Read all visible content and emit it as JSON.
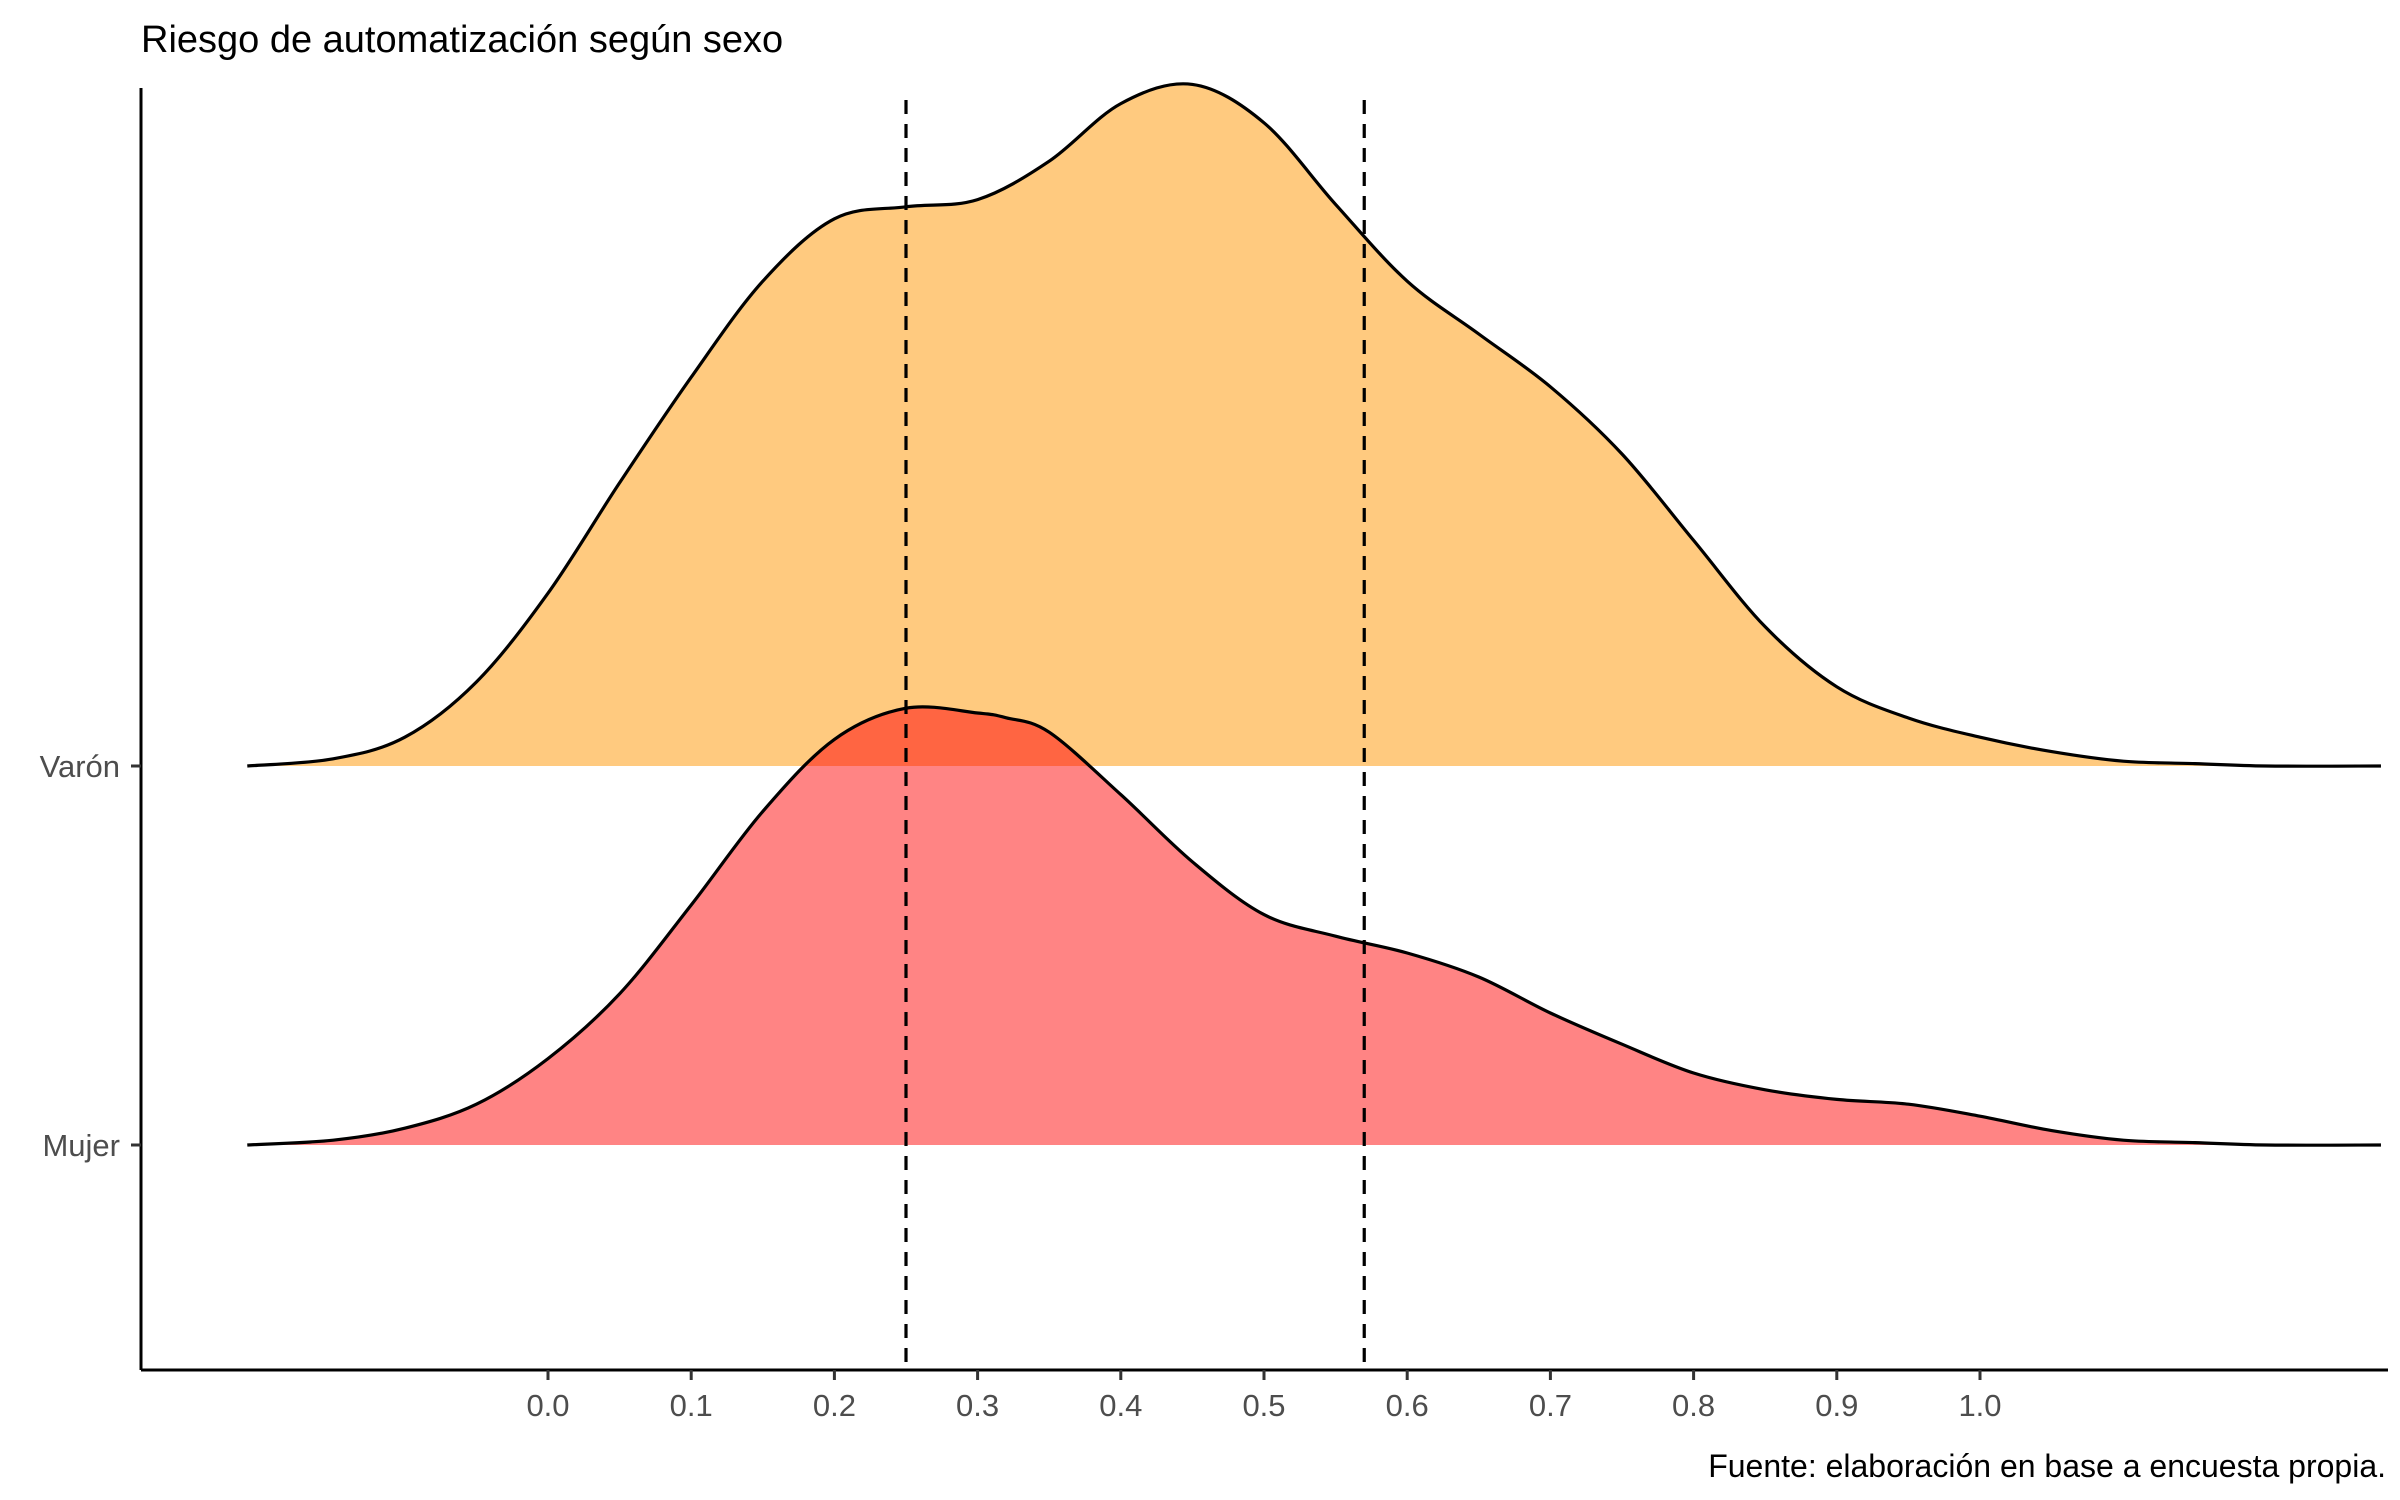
{
  "chart_data": {
    "type": "ridgeline",
    "title": "Riesgo de automatización según sexo",
    "caption": "Fuente: elaboración en base a encuesta propia.",
    "xlabel": "",
    "ylabel": "",
    "xlim": [
      -0.21,
      1.28
    ],
    "x_ticks": [
      "0.0",
      "0.1",
      "0.2",
      "0.3",
      "0.4",
      "0.5",
      "0.6",
      "0.7",
      "0.8",
      "0.9",
      "1.0"
    ],
    "x_tick_values": [
      0,
      0.1,
      0.2,
      0.3,
      0.4,
      0.5,
      0.6,
      0.7,
      0.8,
      0.9,
      1.0
    ],
    "categories": [
      "Mujer",
      "Varón"
    ],
    "reference_lines": [
      0.25,
      0.57
    ],
    "grid": false,
    "legend": "none",
    "series": [
      {
        "name": "Mujer",
        "color": "#FF7F7F",
        "x": [
          -0.21,
          -0.15,
          -0.1,
          -0.05,
          0.0,
          0.05,
          0.1,
          0.15,
          0.2,
          0.25,
          0.3,
          0.32,
          0.35,
          0.4,
          0.45,
          0.5,
          0.55,
          0.6,
          0.65,
          0.7,
          0.75,
          0.8,
          0.85,
          0.9,
          0.95,
          1.0,
          1.05,
          1.1,
          1.15,
          1.2,
          1.28
        ],
        "density": [
          0.0,
          0.02,
          0.07,
          0.17,
          0.36,
          0.63,
          1.0,
          1.39,
          1.69,
          1.82,
          1.8,
          1.78,
          1.72,
          1.46,
          1.18,
          0.96,
          0.87,
          0.8,
          0.7,
          0.55,
          0.42,
          0.3,
          0.23,
          0.19,
          0.17,
          0.12,
          0.06,
          0.02,
          0.01,
          0.0,
          0.0
        ]
      },
      {
        "name": "Varón",
        "color": "#FFCA7F",
        "x": [
          -0.21,
          -0.15,
          -0.1,
          -0.05,
          0.0,
          0.05,
          0.1,
          0.15,
          0.2,
          0.25,
          0.3,
          0.35,
          0.4,
          0.45,
          0.5,
          0.55,
          0.6,
          0.65,
          0.7,
          0.75,
          0.8,
          0.85,
          0.9,
          0.95,
          1.0,
          1.05,
          1.1,
          1.15,
          1.2,
          1.28
        ],
        "density": [
          0.0,
          0.03,
          0.12,
          0.35,
          0.72,
          1.18,
          1.62,
          2.02,
          2.28,
          2.33,
          2.36,
          2.52,
          2.76,
          2.84,
          2.68,
          2.34,
          2.02,
          1.8,
          1.58,
          1.3,
          0.94,
          0.58,
          0.33,
          0.2,
          0.12,
          0.06,
          0.02,
          0.01,
          0.0,
          0.0
        ]
      }
    ]
  }
}
